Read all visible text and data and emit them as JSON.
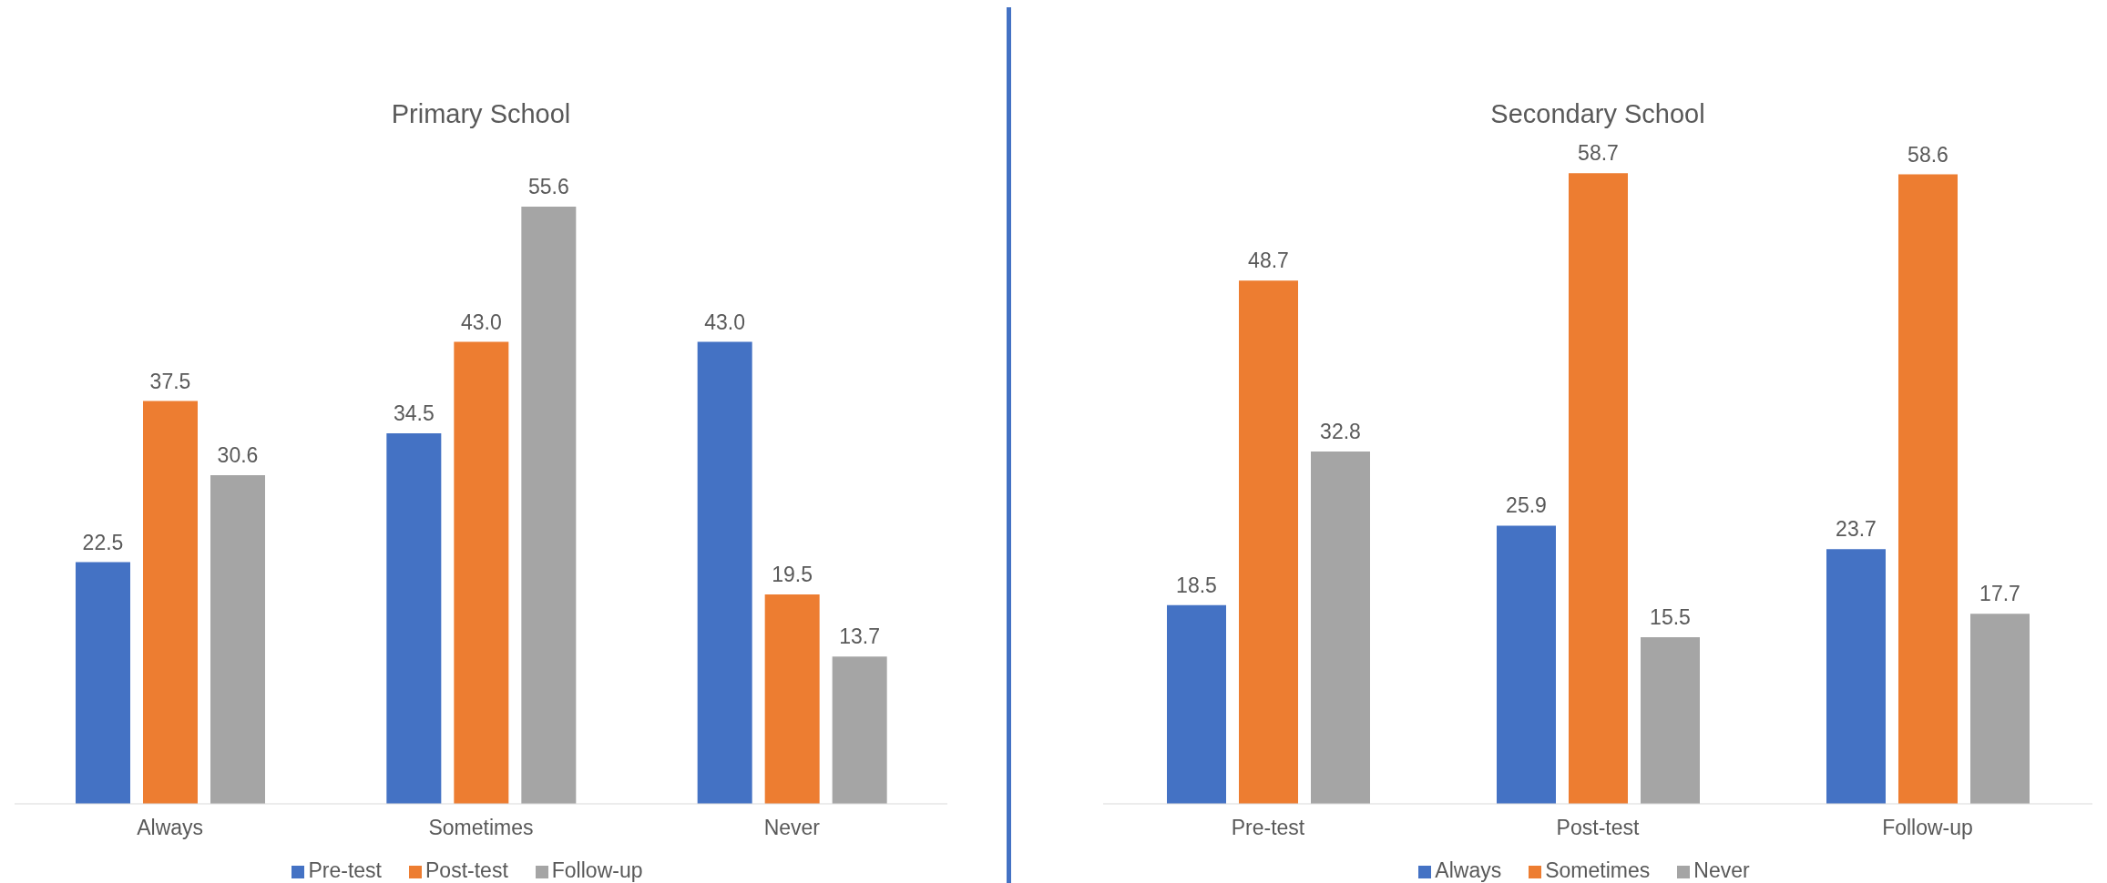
{
  "chart_data": [
    {
      "type": "bar",
      "title": "Primary School",
      "categories": [
        "Always",
        "Sometimes",
        "Never"
      ],
      "legend": "bottom",
      "grid": false,
      "series": [
        {
          "name": "Pre-test",
          "color": "#4472c4",
          "values": [
            22.5,
            34.5,
            43.0
          ],
          "value_labels": [
            "22.5",
            "34.5",
            "43.0"
          ]
        },
        {
          "name": "Post-test",
          "color": "#ed7d31",
          "values": [
            37.5,
            43.0,
            19.5
          ],
          "value_labels": [
            "37.5",
            "43.0",
            "19.5"
          ]
        },
        {
          "name": "Follow-up",
          "color": "#a5a5a5",
          "values": [
            30.6,
            55.6,
            13.7
          ],
          "value_labels": [
            "30.6",
            "55.6",
            "13.7"
          ]
        }
      ]
    },
    {
      "type": "bar",
      "title": "Secondary School",
      "categories": [
        "Pre-test",
        "Post-test",
        "Follow-up"
      ],
      "legend": "bottom",
      "grid": false,
      "series": [
        {
          "name": "Always",
          "color": "#4472c4",
          "values": [
            18.5,
            25.9,
            23.7
          ],
          "value_labels": [
            "18.5",
            "25.9",
            "23.7"
          ]
        },
        {
          "name": "Sometimes",
          "color": "#ed7d31",
          "values": [
            48.7,
            58.7,
            58.6
          ],
          "value_labels": [
            "48.7",
            "58.7",
            "58.6"
          ]
        },
        {
          "name": "Never",
          "color": "#a5a5a5",
          "values": [
            32.8,
            15.5,
            17.7
          ],
          "value_labels": [
            "32.8",
            "15.5",
            "17.7"
          ]
        }
      ]
    }
  ]
}
